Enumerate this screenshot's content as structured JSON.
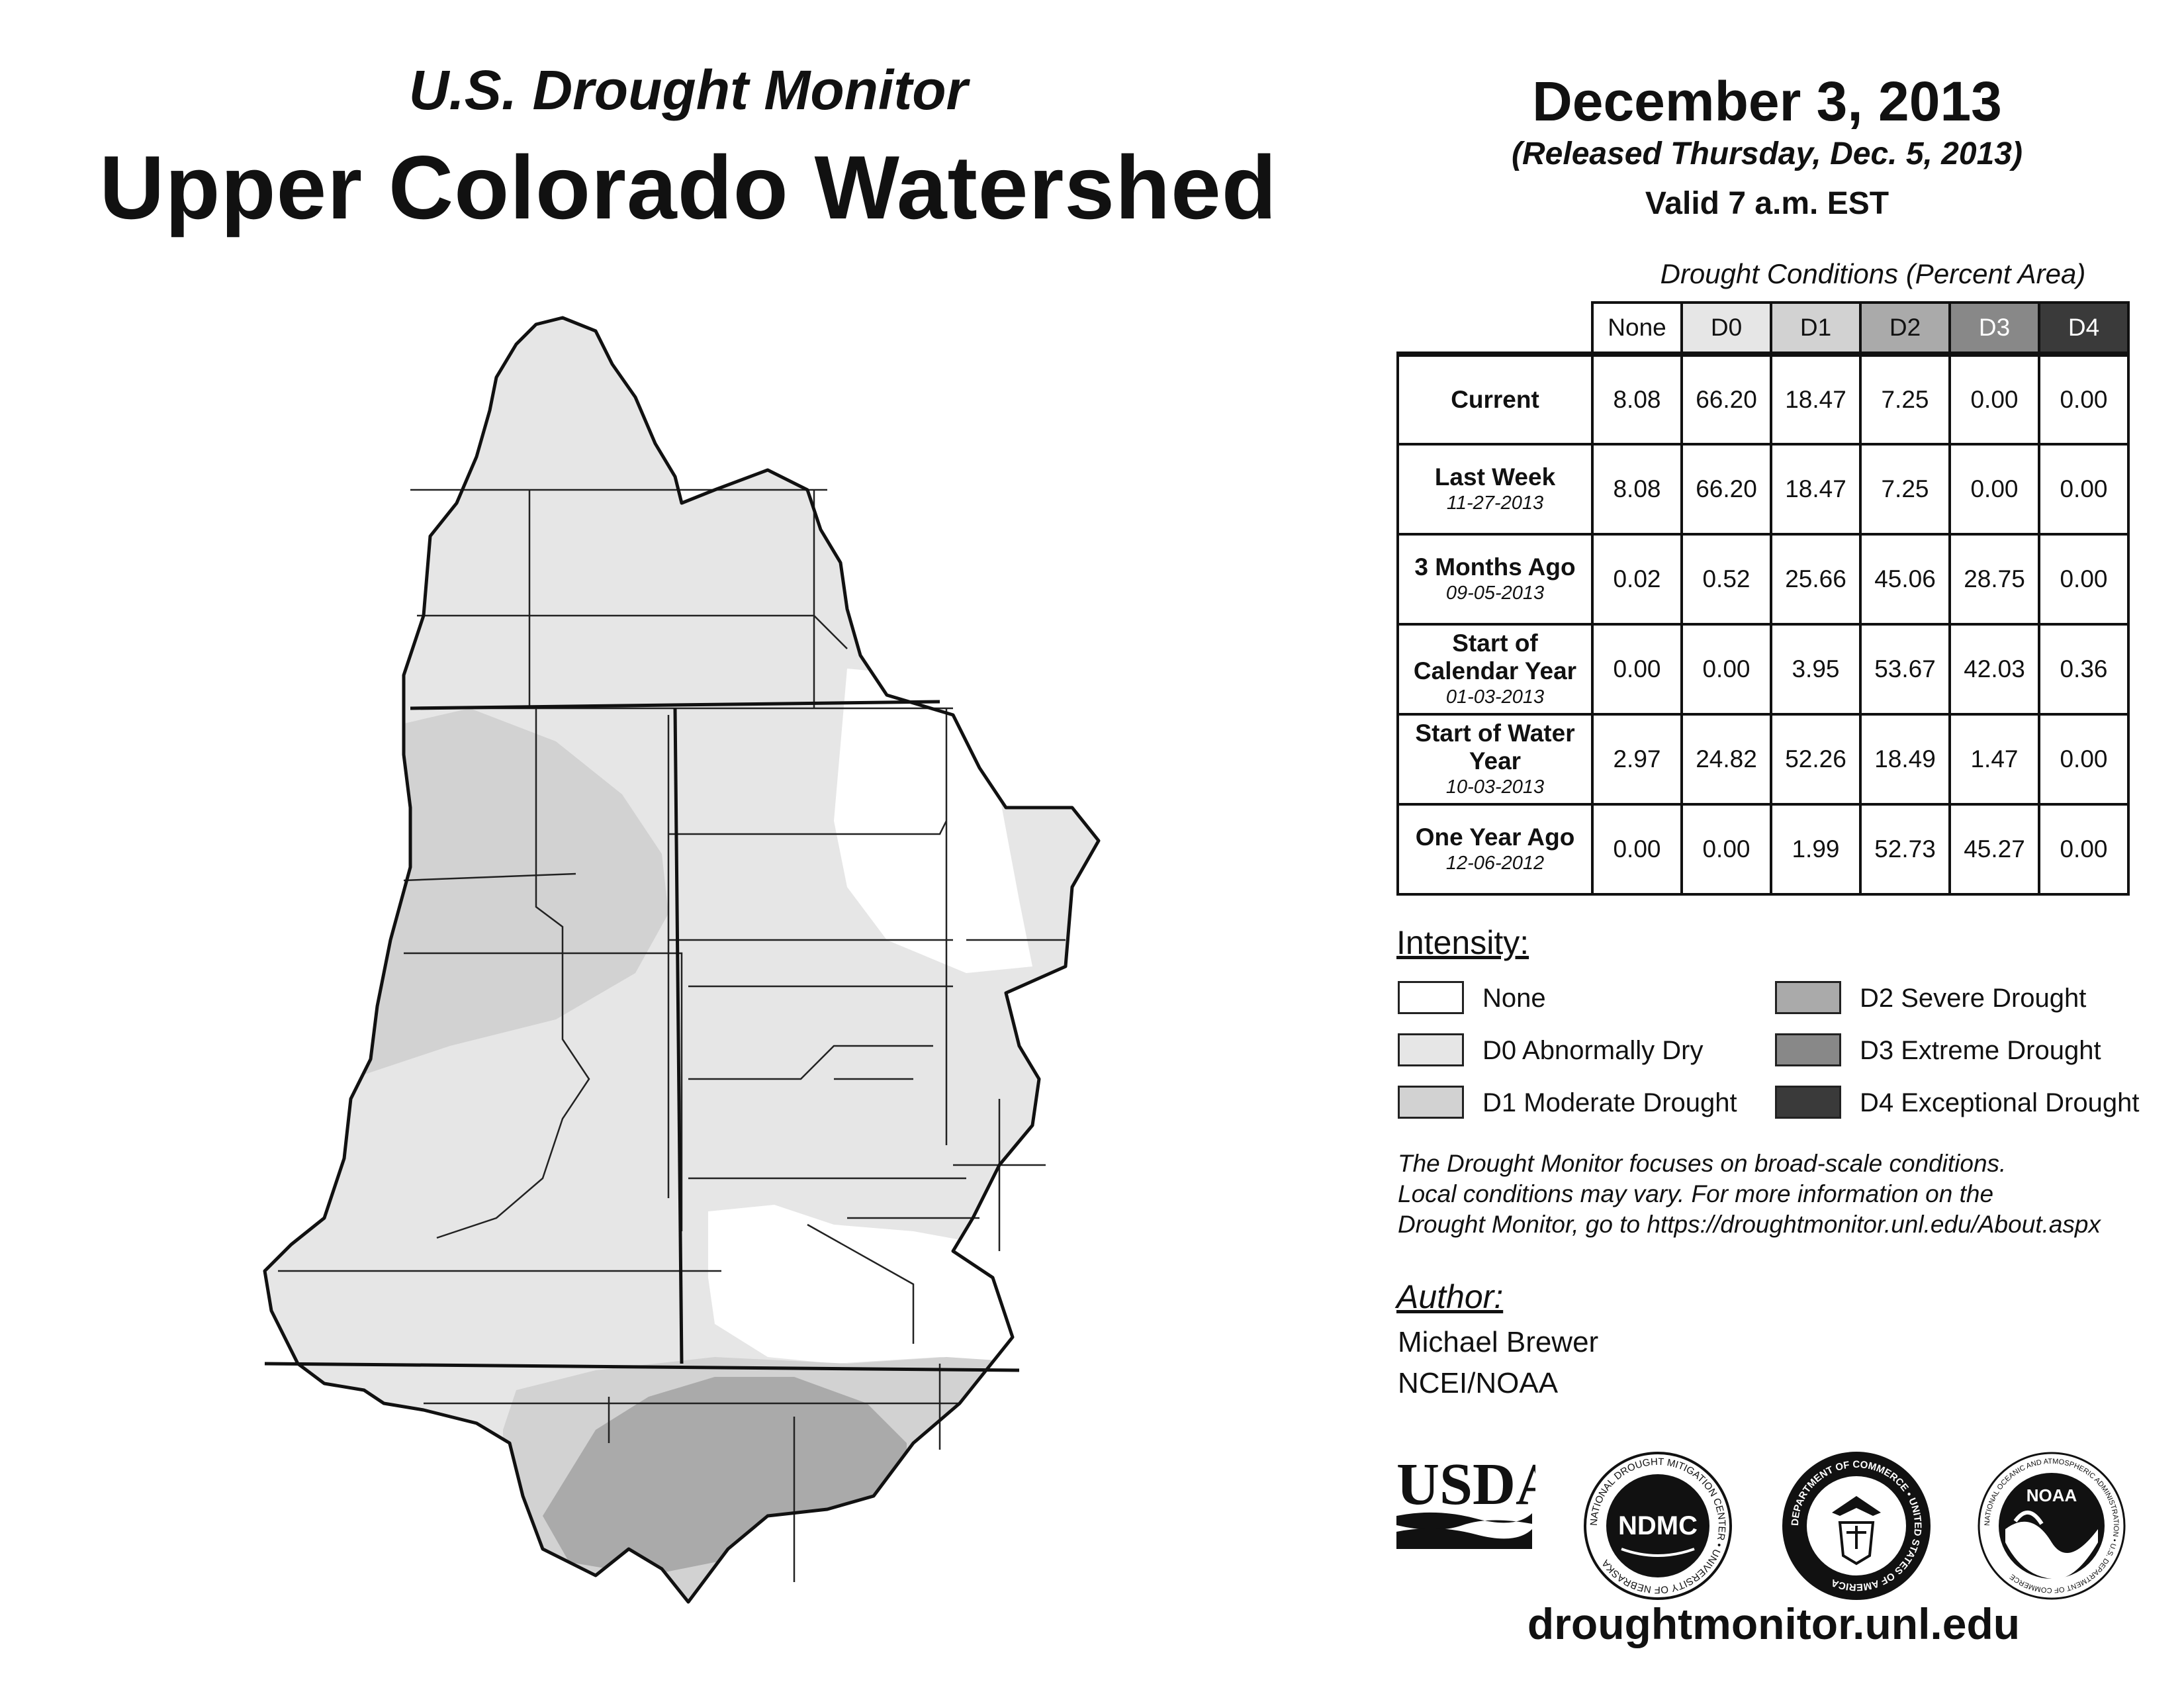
{
  "header": {
    "subtitle": "U.S. Drought Monitor",
    "title": "Upper Colorado Watershed",
    "date": "December 3, 2013",
    "released": "(Released Thursday, Dec. 5, 2013)",
    "valid": "Valid 7 a.m. EST"
  },
  "table": {
    "caption": "Drought Conditions (Percent Area)",
    "columns": [
      "None",
      "D0",
      "D1",
      "D2",
      "D3",
      "D4"
    ],
    "column_colors": [
      "#ffffff",
      "#e6e6e6",
      "#d2d2d2",
      "#aaaaaa",
      "#888888",
      "#3a3a3a"
    ],
    "column_text_colors": [
      "#111111",
      "#111111",
      "#111111",
      "#111111",
      "#ffffff",
      "#ffffff"
    ],
    "rows": [
      {
        "label": "Current",
        "date": "",
        "values": [
          "8.08",
          "66.20",
          "18.47",
          "7.25",
          "0.00",
          "0.00"
        ]
      },
      {
        "label": "Last Week",
        "date": "11-27-2013",
        "values": [
          "8.08",
          "66.20",
          "18.47",
          "7.25",
          "0.00",
          "0.00"
        ]
      },
      {
        "label": "3 Months Ago",
        "date": "09-05-2013",
        "values": [
          "0.02",
          "0.52",
          "25.66",
          "45.06",
          "28.75",
          "0.00"
        ]
      },
      {
        "label": "Start of Calendar Year",
        "date": "01-03-2013",
        "values": [
          "0.00",
          "0.00",
          "3.95",
          "53.67",
          "42.03",
          "0.36"
        ]
      },
      {
        "label": "Start of Water Year",
        "date": "10-03-2013",
        "values": [
          "2.97",
          "24.82",
          "52.26",
          "18.49",
          "1.47",
          "0.00"
        ]
      },
      {
        "label": "One Year Ago",
        "date": "12-06-2012",
        "values": [
          "0.00",
          "0.00",
          "1.99",
          "52.73",
          "45.27",
          "0.00"
        ]
      }
    ]
  },
  "legend": {
    "title": "Intensity:",
    "items": [
      {
        "label": "None",
        "color": "#ffffff"
      },
      {
        "label": "D0 Abnormally Dry",
        "color": "#e6e6e6"
      },
      {
        "label": "D1 Moderate Drought",
        "color": "#d2d2d2"
      },
      {
        "label": "D2 Severe Drought",
        "color": "#aaaaaa"
      },
      {
        "label": "D3 Extreme Drought",
        "color": "#888888"
      },
      {
        "label": "D4 Exceptional Drought",
        "color": "#3a3a3a"
      }
    ]
  },
  "note": [
    "The Drought Monitor focuses on broad-scale conditions.",
    "Local conditions may vary. For more information on the",
    "Drought Monitor, go to https://droughtmonitor.unl.edu/About.aspx"
  ],
  "author": {
    "title": "Author:",
    "name": "Michael Brewer",
    "org": "NCEI/NOAA"
  },
  "logos": {
    "usda": "USDA",
    "ndmc": "NDMC",
    "ndmc_ring": "NATIONAL DROUGHT MITIGATION CENTER • UNIVERSITY OF NEBRASKA",
    "commerce_ring": "DEPARTMENT OF COMMERCE • UNITED STATES OF AMERICA",
    "noaa": "NOAA",
    "noaa_ring": "NATIONAL OCEANIC AND ATMOSPHERIC ADMINISTRATION • U.S. DEPARTMENT OF COMMERCE"
  },
  "url": "droughtmonitor.unl.edu"
}
